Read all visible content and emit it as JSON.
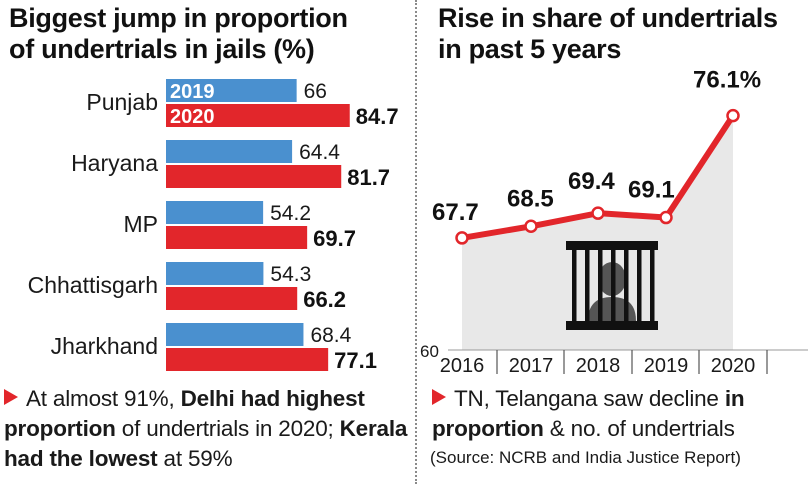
{
  "chart_data": [
    {
      "type": "bar",
      "title": [
        "Biggest jump in proportion",
        "of undertrials in jails (%)"
      ],
      "categories": [
        "Punjab",
        "Haryana",
        "MP",
        "Chhattisgarh",
        "Jharkhand"
      ],
      "series": [
        {
          "name": "2019",
          "values": [
            66,
            64.4,
            54.2,
            54.3,
            68.4
          ],
          "labels": [
            "66",
            "64.4",
            "54.2",
            "54.3",
            "68.4"
          ],
          "color": "#4a90cf"
        },
        {
          "name": "2020",
          "values": [
            84.7,
            81.7,
            69.7,
            66.2,
            77.1
          ],
          "labels": [
            "84.7",
            "81.7",
            "69.7",
            "66.2",
            "77.1"
          ],
          "color": "#e2262b"
        }
      ],
      "orientation": "horizontal",
      "legend": "inside first bars"
    },
    {
      "type": "line",
      "title": [
        "Rise in share of undertrials",
        "in past 5 years"
      ],
      "x": [
        "2016",
        "2017",
        "2018",
        "2019",
        "2020"
      ],
      "values": [
        67.7,
        68.5,
        69.4,
        69.1,
        76.1
      ],
      "labels": [
        "67.7",
        "68.5",
        "69.4",
        "69.1",
        "76.1%"
      ],
      "ylim": [
        60,
        78
      ],
      "y_tick": "60",
      "line_color": "#e2262b",
      "area_color": "#e8e8e8",
      "icon": "jail-bars-icon"
    }
  ],
  "footer_left": {
    "parts": [
      {
        "text": "At almost 91%, ",
        "bold": false
      },
      {
        "text": "Delhi had highest proportion",
        "bold": true
      },
      {
        "text": " of undertrials in 2020; ",
        "bold": false
      },
      {
        "text": "Kerala had the lowest",
        "bold": true
      },
      {
        "text": " at 59%",
        "bold": false
      }
    ]
  },
  "footer_right": {
    "parts": [
      {
        "text": "TN, Telangana saw decline ",
        "bold": false
      },
      {
        "text": "in proportion",
        "bold": true
      },
      {
        "text": " & no. of undertrials",
        "bold": false
      }
    ],
    "source": "(Source: NCRB and India Justice Report)"
  }
}
